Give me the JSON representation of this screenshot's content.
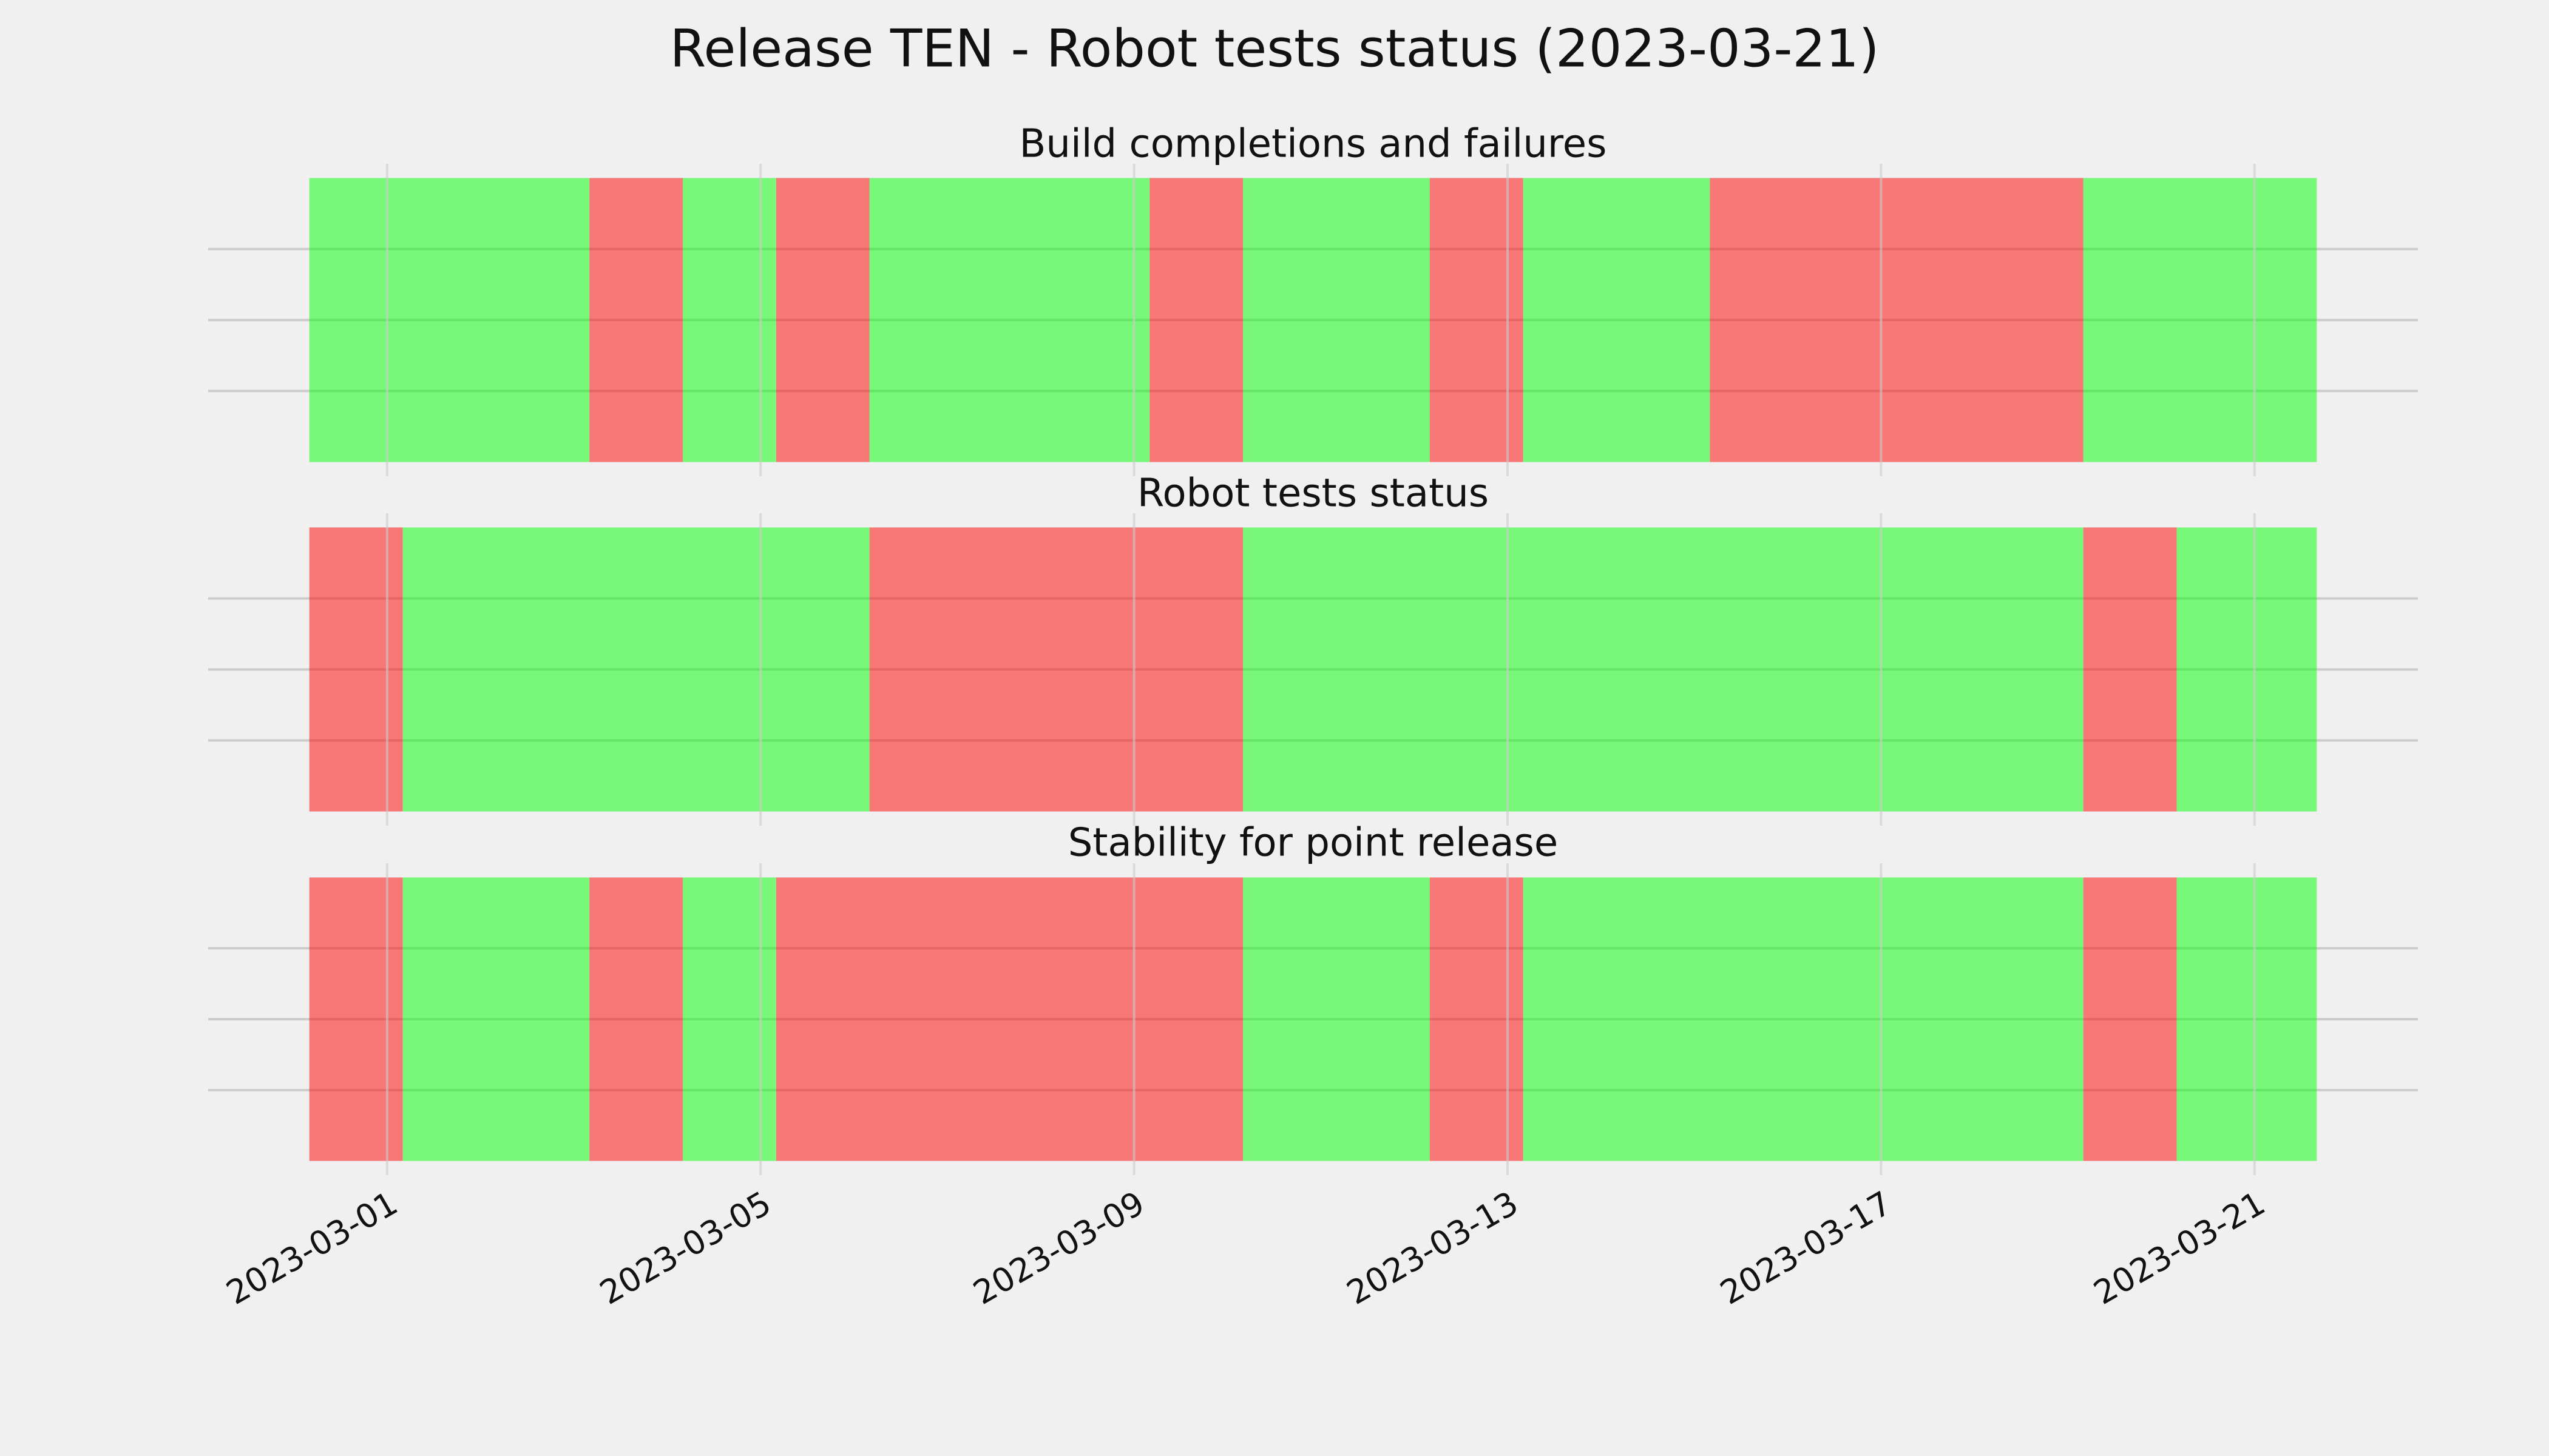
{
  "title": "Release TEN - Robot tests status (2023-03-21)",
  "chart_data": [
    {
      "type": "timeline",
      "title": "Build completions and failures",
      "xlim": [
        "2023-02-27T02:00",
        "2023-03-22T18:00"
      ],
      "xticks": [
        "2023-03-01",
        "2023-03-05",
        "2023-03-09",
        "2023-03-13",
        "2023-03-17",
        "2023-03-21"
      ],
      "ylim": [
        -0.05,
        1.05
      ],
      "yticks": [
        0.25,
        0.5,
        0.75
      ],
      "grid": true,
      "alpha": 0.5,
      "segments": [
        {
          "start": "2023-02-28T04:00",
          "end": "2023-03-03T04:00",
          "color": "#00ff00"
        },
        {
          "start": "2023-03-03T04:00",
          "end": "2023-03-04T04:00",
          "color": "#ff0000"
        },
        {
          "start": "2023-03-04T04:00",
          "end": "2023-03-05T04:00",
          "color": "#00ff00"
        },
        {
          "start": "2023-03-05T04:00",
          "end": "2023-03-06T04:00",
          "color": "#ff0000"
        },
        {
          "start": "2023-03-06T04:00",
          "end": "2023-03-09T04:00",
          "color": "#00ff00"
        },
        {
          "start": "2023-03-09T04:00",
          "end": "2023-03-10T04:00",
          "color": "#ff0000"
        },
        {
          "start": "2023-03-10T04:00",
          "end": "2023-03-12T04:00",
          "color": "#00ff00"
        },
        {
          "start": "2023-03-12T04:00",
          "end": "2023-03-13T04:00",
          "color": "#ff0000"
        },
        {
          "start": "2023-03-13T04:00",
          "end": "2023-03-15T04:00",
          "color": "#00ff00"
        },
        {
          "start": "2023-03-15T04:00",
          "end": "2023-03-19T04:00",
          "color": "#ff0000"
        },
        {
          "start": "2023-03-19T04:00",
          "end": "2023-03-21T16:00",
          "color": "#00ff00"
        }
      ]
    },
    {
      "type": "timeline",
      "title": "Robot tests status",
      "xlim": [
        "2023-02-27T02:00",
        "2023-03-22T18:00"
      ],
      "xticks": [
        "2023-03-01",
        "2023-03-05",
        "2023-03-09",
        "2023-03-13",
        "2023-03-17",
        "2023-03-21"
      ],
      "ylim": [
        -0.05,
        1.05
      ],
      "yticks": [
        0.25,
        0.5,
        0.75
      ],
      "grid": true,
      "alpha": 0.5,
      "segments": [
        {
          "start": "2023-02-28T04:00",
          "end": "2023-03-01T04:00",
          "color": "#ff0000"
        },
        {
          "start": "2023-03-01T04:00",
          "end": "2023-03-06T04:00",
          "color": "#00ff00"
        },
        {
          "start": "2023-03-06T04:00",
          "end": "2023-03-10T04:00",
          "color": "#ff0000"
        },
        {
          "start": "2023-03-10T04:00",
          "end": "2023-03-19T04:00",
          "color": "#00ff00"
        },
        {
          "start": "2023-03-19T04:00",
          "end": "2023-03-20T04:00",
          "color": "#ff0000"
        },
        {
          "start": "2023-03-20T04:00",
          "end": "2023-03-21T16:00",
          "color": "#00ff00"
        }
      ]
    },
    {
      "type": "timeline",
      "title": "Stability for point release",
      "xlim": [
        "2023-02-27T02:00",
        "2023-03-22T18:00"
      ],
      "xticks": [
        "2023-03-01",
        "2023-03-05",
        "2023-03-09",
        "2023-03-13",
        "2023-03-17",
        "2023-03-21"
      ],
      "ylim": [
        -0.05,
        1.05
      ],
      "yticks": [
        0.25,
        0.5,
        0.75
      ],
      "grid": true,
      "alpha": 0.5,
      "segments": [
        {
          "start": "2023-02-28T04:00",
          "end": "2023-03-01T04:00",
          "color": "#ff0000"
        },
        {
          "start": "2023-03-01T04:00",
          "end": "2023-03-03T04:00",
          "color": "#00ff00"
        },
        {
          "start": "2023-03-03T04:00",
          "end": "2023-03-04T04:00",
          "color": "#ff0000"
        },
        {
          "start": "2023-03-04T04:00",
          "end": "2023-03-05T04:00",
          "color": "#00ff00"
        },
        {
          "start": "2023-03-05T04:00",
          "end": "2023-03-10T04:00",
          "color": "#ff0000"
        },
        {
          "start": "2023-03-10T04:00",
          "end": "2023-03-12T04:00",
          "color": "#00ff00"
        },
        {
          "start": "2023-03-12T04:00",
          "end": "2023-03-13T04:00",
          "color": "#ff0000"
        },
        {
          "start": "2023-03-13T04:00",
          "end": "2023-03-19T04:00",
          "color": "#00ff00"
        },
        {
          "start": "2023-03-19T04:00",
          "end": "2023-03-20T04:00",
          "color": "#ff0000"
        },
        {
          "start": "2023-03-20T04:00",
          "end": "2023-03-21T16:00",
          "color": "#00ff00"
        }
      ]
    }
  ]
}
